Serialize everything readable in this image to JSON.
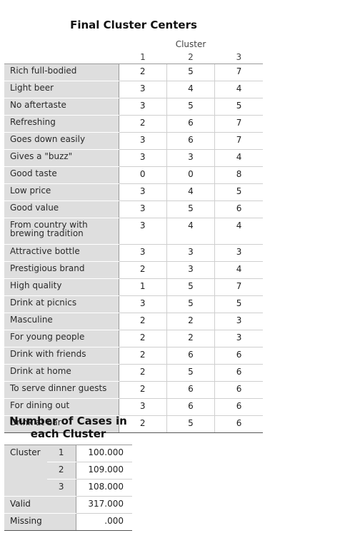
{
  "centers": {
    "title": "Final Cluster Centers",
    "cluster_label": "Cluster",
    "cluster_ids": [
      "1",
      "2",
      "3"
    ],
    "rows": [
      {
        "label": "Rich full-bodied",
        "values": [
          "2",
          "5",
          "7"
        ]
      },
      {
        "label": "Light beer",
        "values": [
          "3",
          "4",
          "4"
        ]
      },
      {
        "label": "No aftertaste",
        "values": [
          "3",
          "5",
          "5"
        ]
      },
      {
        "label": "Refreshing",
        "values": [
          "2",
          "6",
          "7"
        ]
      },
      {
        "label": "Goes down easily",
        "values": [
          "3",
          "6",
          "7"
        ]
      },
      {
        "label": "Gives a \"buzz\"",
        "values": [
          "3",
          "3",
          "4"
        ]
      },
      {
        "label": "Good taste",
        "values": [
          "0",
          "0",
          "8"
        ]
      },
      {
        "label": "Low price",
        "values": [
          "3",
          "4",
          "5"
        ]
      },
      {
        "label": "Good value",
        "values": [
          "3",
          "5",
          "6"
        ]
      },
      {
        "label": "From country with brewing tradition",
        "values": [
          "3",
          "4",
          "4"
        ]
      },
      {
        "label": "Attractive bottle",
        "values": [
          "3",
          "3",
          "3"
        ]
      },
      {
        "label": "Prestigious brand",
        "values": [
          "2",
          "3",
          "4"
        ]
      },
      {
        "label": "High quality",
        "values": [
          "1",
          "5",
          "7"
        ]
      },
      {
        "label": "Drink at picnics",
        "values": [
          "3",
          "5",
          "5"
        ]
      },
      {
        "label": "Masculine",
        "values": [
          "2",
          "2",
          "3"
        ]
      },
      {
        "label": "For young people",
        "values": [
          "2",
          "2",
          "3"
        ]
      },
      {
        "label": "Drink with friends",
        "values": [
          "2",
          "6",
          "6"
        ]
      },
      {
        "label": "Drink at home",
        "values": [
          "2",
          "5",
          "6"
        ]
      },
      {
        "label": "To serve dinner guests",
        "values": [
          "2",
          "6",
          "6"
        ]
      },
      {
        "label": "For dining out",
        "values": [
          "3",
          "6",
          "6"
        ]
      },
      {
        "label": "Drink at bar",
        "values": [
          "2",
          "5",
          "6"
        ]
      }
    ]
  },
  "cases": {
    "title": "Number of Cases in each Cluster",
    "cluster_label": "Cluster",
    "clusters": [
      {
        "id": "1",
        "count": "100.000"
      },
      {
        "id": "2",
        "count": "109.000"
      },
      {
        "id": "3",
        "count": "108.000"
      }
    ],
    "valid_label": "Valid",
    "valid_value": "317.000",
    "missing_label": "Missing",
    "missing_value": ".000"
  }
}
